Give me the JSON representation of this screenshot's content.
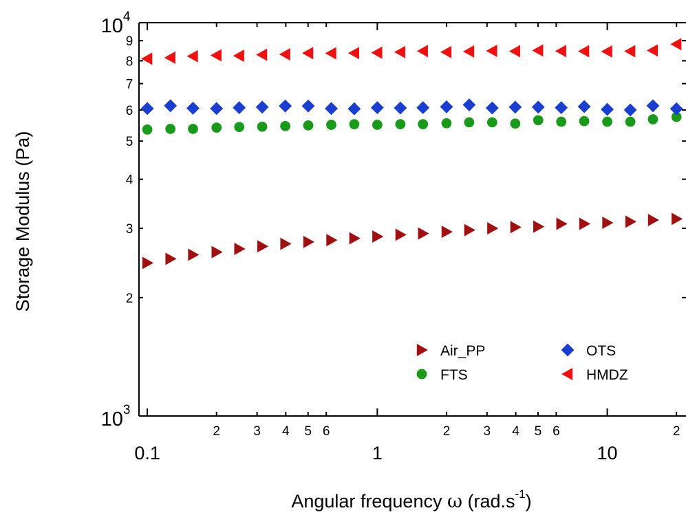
{
  "chart_data": {
    "type": "scatter",
    "xscale": "log",
    "yscale": "log",
    "xlim": [
      0.092,
      22
    ],
    "ylim": [
      1000,
      10000
    ],
    "xlabel": {
      "text": "Angular frequency ",
      "symbol": "ω",
      "units_open": " (rad.s",
      "units_sup": "-1",
      "units_close": ")"
    },
    "ylabel": "Storage Modulus (Pa)",
    "x_major_ticks": [
      {
        "value": 0.1,
        "label": "0.1"
      },
      {
        "value": 1,
        "label": "1"
      },
      {
        "value": 10,
        "label": "10"
      }
    ],
    "x_minor_ticks": [
      {
        "value": 0.2,
        "label": "2"
      },
      {
        "value": 0.3,
        "label": "3"
      },
      {
        "value": 0.4,
        "label": "4"
      },
      {
        "value": 0.5,
        "label": "5"
      },
      {
        "value": 0.6,
        "label": "6"
      },
      {
        "value": 2,
        "label": "2"
      },
      {
        "value": 3,
        "label": "3"
      },
      {
        "value": 4,
        "label": "4"
      },
      {
        "value": 5,
        "label": "5"
      },
      {
        "value": 6,
        "label": "6"
      },
      {
        "value": 20,
        "label": "2"
      }
    ],
    "y_major_ticks": [
      {
        "value": 1000,
        "base": "10",
        "exp": "3"
      },
      {
        "value": 10000,
        "base": "10",
        "exp": "4"
      }
    ],
    "y_minor_ticks": [
      {
        "value": 2000,
        "label": "2"
      },
      {
        "value": 3000,
        "label": "3"
      },
      {
        "value": 4000,
        "label": "4"
      },
      {
        "value": 5000,
        "label": "5"
      },
      {
        "value": 6000,
        "label": "6"
      },
      {
        "value": 7000,
        "label": "7"
      },
      {
        "value": 8000,
        "label": "8"
      },
      {
        "value": 9000,
        "label": "9"
      }
    ],
    "x": [
      0.1,
      0.126,
      0.158,
      0.2,
      0.251,
      0.316,
      0.398,
      0.501,
      0.631,
      0.794,
      1.0,
      1.26,
      1.58,
      2.0,
      2.51,
      3.16,
      3.98,
      5.01,
      6.31,
      7.94,
      10.0,
      12.6,
      15.8,
      20.0
    ],
    "series": [
      {
        "name": "Air_PP",
        "marker": "triangle-right",
        "color": "#a01010",
        "values": [
          2450,
          2510,
          2570,
          2610,
          2660,
          2700,
          2740,
          2770,
          2800,
          2830,
          2860,
          2890,
          2910,
          2940,
          2970,
          3000,
          3020,
          3030,
          3080,
          3080,
          3100,
          3120,
          3150,
          3170
        ]
      },
      {
        "name": "FTS",
        "marker": "circle",
        "color": "#1a9a1a",
        "values": [
          5350,
          5370,
          5370,
          5410,
          5430,
          5440,
          5460,
          5480,
          5500,
          5520,
          5500,
          5520,
          5520,
          5550,
          5580,
          5580,
          5540,
          5650,
          5600,
          5620,
          5600,
          5600,
          5680,
          5760
        ]
      },
      {
        "name": "OTS",
        "marker": "diamond",
        "color": "#1a3fd0",
        "values": [
          6050,
          6150,
          6060,
          6050,
          6080,
          6100,
          6140,
          6140,
          6050,
          6040,
          6080,
          6070,
          6080,
          6110,
          6180,
          6070,
          6100,
          6100,
          6080,
          6120,
          6020,
          6000,
          6150,
          6040
        ]
      },
      {
        "name": "HMDZ",
        "marker": "triangle-left",
        "color": "#ee1111",
        "values": [
          8100,
          8150,
          8220,
          8260,
          8240,
          8290,
          8310,
          8370,
          8360,
          8370,
          8390,
          8420,
          8470,
          8420,
          8450,
          8480,
          8460,
          8500,
          8470,
          8460,
          8450,
          8460,
          8500,
          8820
        ]
      }
    ],
    "legend": {
      "placement": "lower-right",
      "columns": 2,
      "order": [
        "Air_PP",
        "OTS",
        "FTS",
        "HMDZ"
      ]
    },
    "grid": false
  }
}
